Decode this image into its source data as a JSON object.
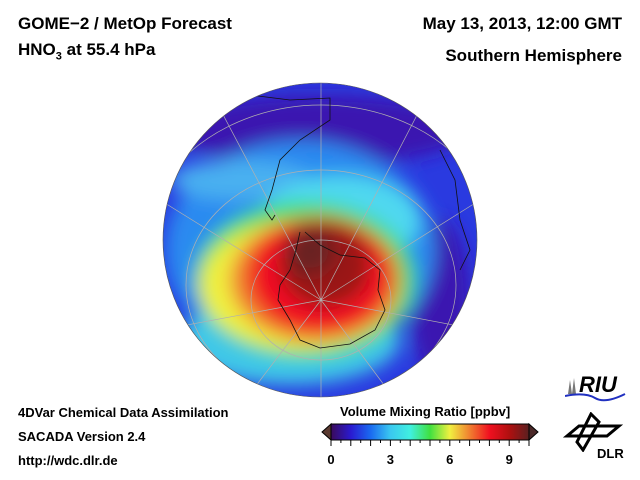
{
  "header": {
    "title_line1": "GOME−2 / MetOp Forecast",
    "species": "HNO",
    "species_subscript": "3",
    "level": " at 55.4 hPa",
    "datetime": "May 13, 2013, 12:00 GMT",
    "region": "Southern Hemisphere"
  },
  "footer": {
    "line1": "4DVar Chemical Data Assimilation",
    "line2": "SACADA Version 2.4",
    "line3": "http://wdc.dlr.de"
  },
  "colorbar": {
    "title": "Volume Mixing Ratio [ppbv]",
    "min": 0,
    "max": 10,
    "ticks": [
      "0",
      "3",
      "6",
      "9"
    ],
    "colors": [
      "#3a0a5a",
      "#2a1ad0",
      "#1a6af0",
      "#3ac8f0",
      "#40f0e0",
      "#40e040",
      "#f0f040",
      "#f08030",
      "#f01020",
      "#b01010",
      "#5a2020"
    ]
  },
  "logos": {
    "riu": "RIU",
    "dlr": "DLR"
  }
}
